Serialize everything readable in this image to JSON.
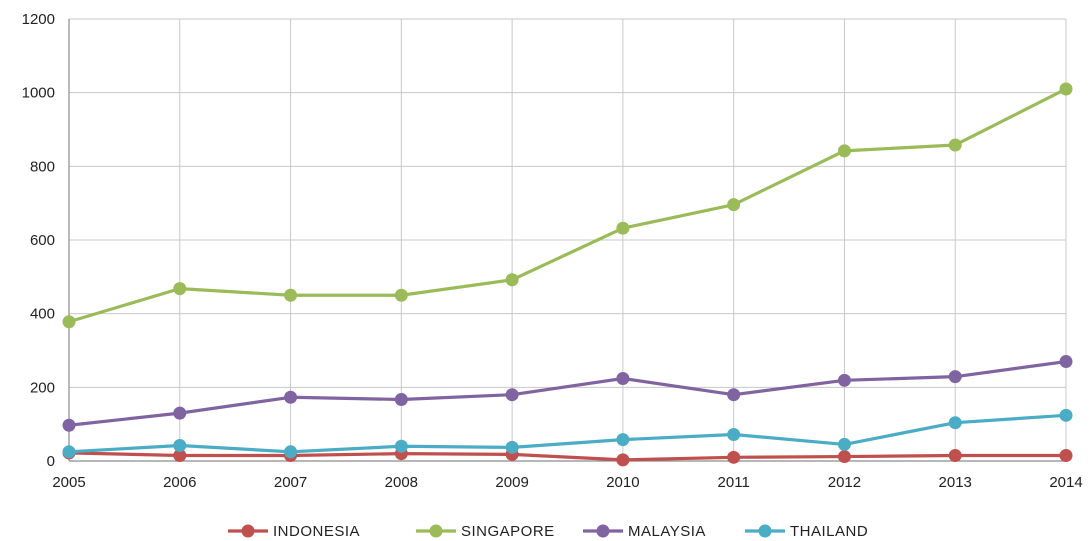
{
  "chart_data": {
    "type": "line",
    "title": "",
    "xlabel": "",
    "ylabel": "",
    "categories": [
      "2005",
      "2006",
      "2007",
      "2008",
      "2009",
      "2010",
      "2011",
      "2012",
      "2013",
      "2014"
    ],
    "y_ticks": [
      "0",
      "200",
      "400",
      "600",
      "800",
      "1000",
      "1200"
    ],
    "ylim": [
      0,
      1200
    ],
    "grid": true,
    "legend_position": "bottom",
    "series": [
      {
        "name": "INDONESIA",
        "color": "#c0504d",
        "values": [
          22,
          15,
          15,
          20,
          18,
          3,
          10,
          12,
          15,
          15
        ]
      },
      {
        "name": "SINGAPORE",
        "color": "#9bbb59",
        "values": [
          378,
          468,
          450,
          450,
          492,
          632,
          696,
          842,
          858,
          1010
        ]
      },
      {
        "name": "MALAYSIA",
        "color": "#8064a2",
        "values": [
          97,
          130,
          173,
          167,
          180,
          224,
          180,
          219,
          229,
          270
        ]
      },
      {
        "name": "THAILAND",
        "color": "#4bacc6",
        "values": [
          25,
          42,
          25,
          40,
          37,
          58,
          72,
          45,
          104,
          124
        ]
      }
    ]
  }
}
